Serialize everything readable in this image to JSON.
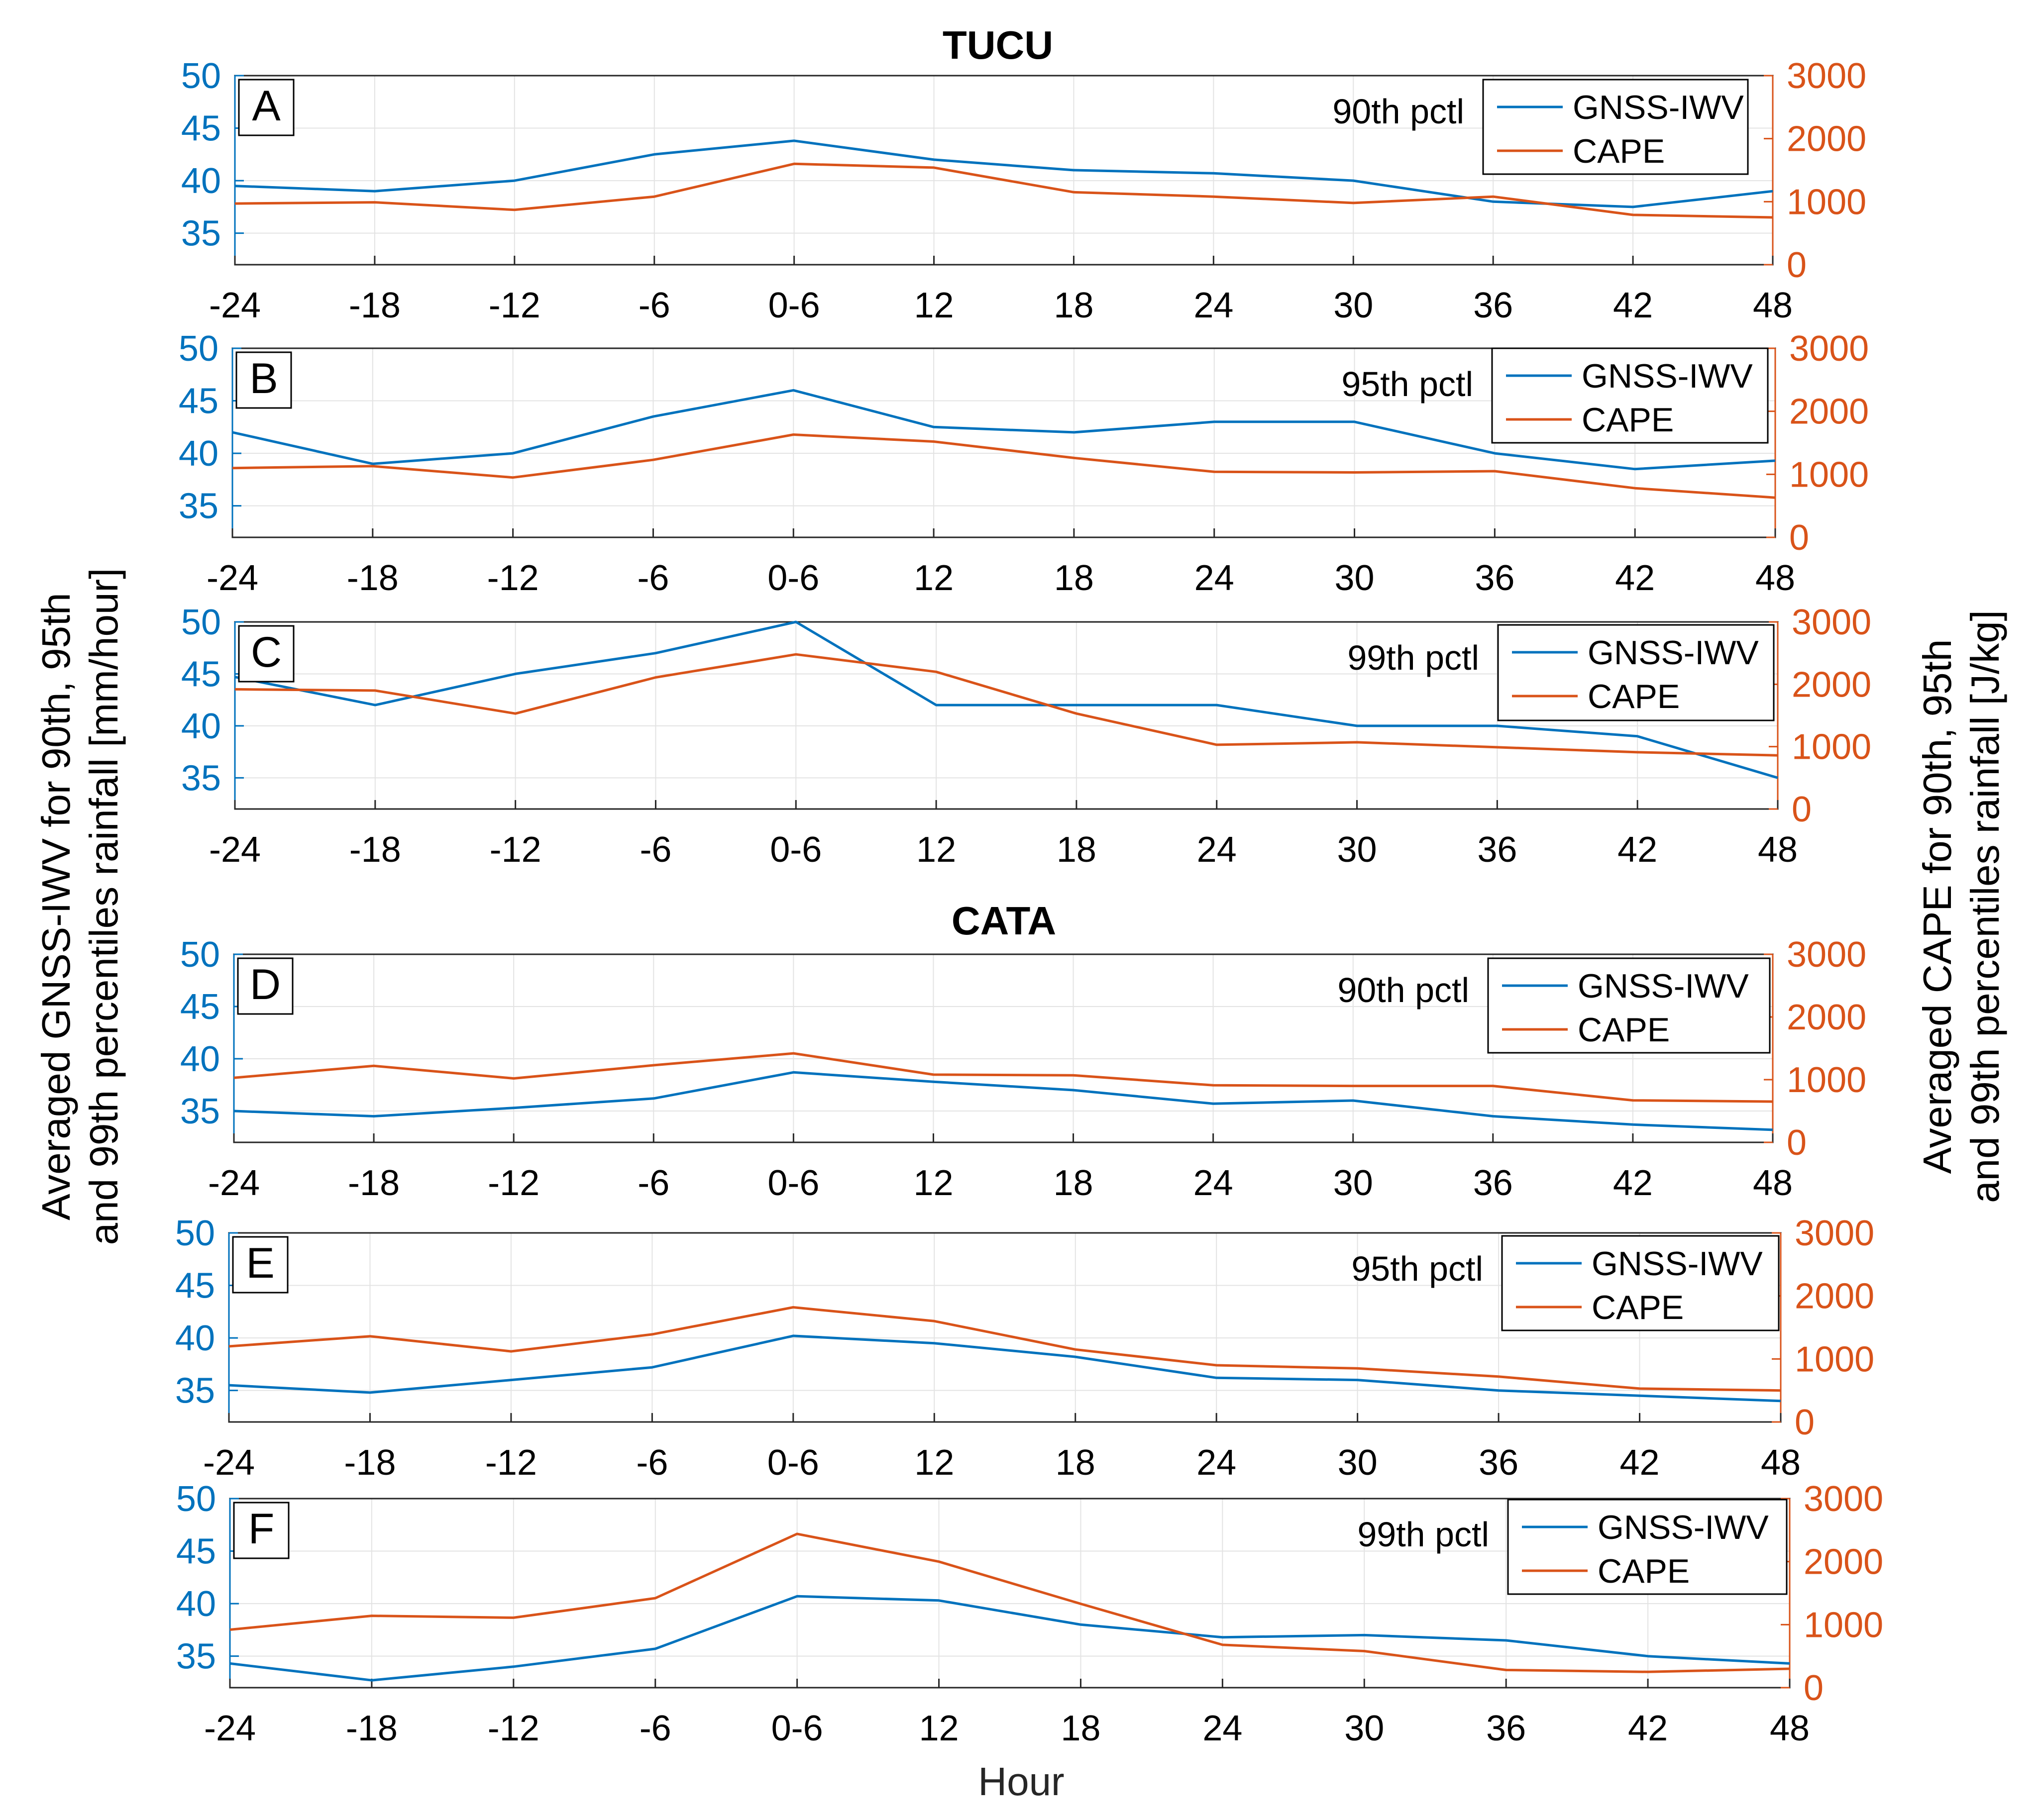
{
  "figure": {
    "y_left_label_line1": "Averaged GNSS-IWV for 90th, 95th",
    "y_left_label_line2": "and 99th percentiles rainfall [mm/hour]",
    "y_right_label_line1": "Averaged CAPE for 90th, 95th",
    "y_right_label_line2": "and 99th percentiles rainfall [J/kg]",
    "x_label": "Hour",
    "station_titles": [
      "TUCU",
      "CATA"
    ],
    "colors": {
      "iwv": "#0072BD",
      "cape": "#D95319",
      "grid": "#e3e3e3",
      "axis": "#262626"
    }
  },
  "chart_data": [
    {
      "type": "line",
      "panel": "A",
      "station": "TUCU",
      "percentile_label": "90th pctl",
      "categories": [
        "-24",
        "-18",
        "-12",
        "-6",
        "0-6",
        "12",
        "18",
        "24",
        "30",
        "36",
        "42",
        "48"
      ],
      "left_ylim": [
        32,
        50
      ],
      "left_ticks": [
        35,
        40,
        45,
        50
      ],
      "right_ylim": [
        0,
        3000
      ],
      "right_ticks": [
        0,
        1000,
        2000,
        3000
      ],
      "series": [
        {
          "name": "GNSS-IWV",
          "axis": "left",
          "values": [
            39.5,
            39.0,
            40.0,
            42.5,
            43.8,
            42.0,
            41.0,
            40.7,
            40.0,
            38.0,
            37.5,
            39.0
          ]
        },
        {
          "name": "CAPE",
          "axis": "right",
          "values": [
            970,
            990,
            870,
            1080,
            1600,
            1540,
            1150,
            1080,
            980,
            1080,
            790,
            750
          ]
        }
      ]
    },
    {
      "type": "line",
      "panel": "B",
      "station": "TUCU",
      "percentile_label": "95th pctl",
      "categories": [
        "-24",
        "-18",
        "-12",
        "-6",
        "0-6",
        "12",
        "18",
        "24",
        "30",
        "36",
        "42",
        "48"
      ],
      "left_ylim": [
        32,
        50
      ],
      "left_ticks": [
        35,
        40,
        45,
        50
      ],
      "right_ylim": [
        0,
        3000
      ],
      "right_ticks": [
        0,
        1000,
        2000,
        3000
      ],
      "series": [
        {
          "name": "GNSS-IWV",
          "axis": "left",
          "values": [
            42.0,
            39.0,
            40.0,
            43.5,
            46.0,
            42.5,
            42.0,
            43.0,
            43.0,
            40.0,
            38.5,
            39.3
          ]
        },
        {
          "name": "CAPE",
          "axis": "right",
          "values": [
            1100,
            1130,
            950,
            1230,
            1630,
            1520,
            1260,
            1040,
            1030,
            1050,
            780,
            630
          ]
        }
      ]
    },
    {
      "type": "line",
      "panel": "C",
      "station": "TUCU",
      "percentile_label": "99th pctl",
      "categories": [
        "-24",
        "-18",
        "-12",
        "-6",
        "0-6",
        "12",
        "18",
        "24",
        "30",
        "36",
        "42",
        "48"
      ],
      "left_ylim": [
        32,
        50
      ],
      "left_ticks": [
        35,
        40,
        45,
        50
      ],
      "right_ylim": [
        0,
        3000
      ],
      "right_ticks": [
        0,
        1000,
        2000,
        3000
      ],
      "series": [
        {
          "name": "GNSS-IWV",
          "axis": "left",
          "values": [
            44.7,
            42.0,
            45.0,
            47.0,
            50.0,
            42.0,
            42.0,
            42.0,
            40.0,
            40.0,
            39.0,
            35.0
          ]
        },
        {
          "name": "CAPE",
          "axis": "right",
          "values": [
            1920,
            1900,
            1530,
            2110,
            2480,
            2200,
            1530,
            1030,
            1070,
            990,
            910,
            860
          ]
        }
      ]
    },
    {
      "type": "line",
      "panel": "D",
      "station": "CATA",
      "percentile_label": "90th pctl",
      "categories": [
        "-24",
        "-18",
        "-12",
        "-6",
        "0-6",
        "12",
        "18",
        "24",
        "30",
        "36",
        "42",
        "48"
      ],
      "left_ylim": [
        32,
        50
      ],
      "left_ticks": [
        35,
        40,
        45,
        50
      ],
      "right_ylim": [
        0,
        3000
      ],
      "right_ticks": [
        0,
        1000,
        2000,
        3000
      ],
      "series": [
        {
          "name": "GNSS-IWV",
          "axis": "left",
          "values": [
            35.0,
            34.5,
            35.3,
            36.2,
            38.7,
            37.8,
            37.0,
            35.7,
            36.0,
            34.5,
            33.7,
            33.2
          ]
        },
        {
          "name": "CAPE",
          "axis": "right",
          "values": [
            1030,
            1220,
            1020,
            1230,
            1420,
            1080,
            1070,
            910,
            900,
            900,
            670,
            650
          ]
        }
      ]
    },
    {
      "type": "line",
      "panel": "E",
      "station": "CATA",
      "percentile_label": "95th pctl",
      "categories": [
        "-24",
        "-18",
        "-12",
        "-6",
        "0-6",
        "12",
        "18",
        "24",
        "30",
        "36",
        "42",
        "48"
      ],
      "left_ylim": [
        32,
        50
      ],
      "left_ticks": [
        35,
        40,
        45,
        50
      ],
      "right_ylim": [
        0,
        3000
      ],
      "right_ticks": [
        0,
        1000,
        2000,
        3000
      ],
      "series": [
        {
          "name": "GNSS-IWV",
          "axis": "left",
          "values": [
            35.5,
            34.8,
            36.0,
            37.2,
            40.2,
            39.5,
            38.2,
            36.2,
            36.0,
            35.0,
            34.5,
            34.0
          ]
        },
        {
          "name": "CAPE",
          "axis": "right",
          "values": [
            1200,
            1360,
            1120,
            1390,
            1820,
            1600,
            1150,
            900,
            850,
            720,
            530,
            500
          ]
        }
      ]
    },
    {
      "type": "line",
      "panel": "F",
      "station": "CATA",
      "percentile_label": "99th pctl",
      "categories": [
        "-24",
        "-18",
        "-12",
        "-6",
        "0-6",
        "12",
        "18",
        "24",
        "30",
        "36",
        "42",
        "48"
      ],
      "left_ylim": [
        32,
        50
      ],
      "left_ticks": [
        35,
        40,
        45,
        50
      ],
      "right_ylim": [
        0,
        3000
      ],
      "right_ticks": [
        0,
        1000,
        2000,
        3000
      ],
      "series": [
        {
          "name": "GNSS-IWV",
          "axis": "left",
          "values": [
            34.3,
            32.7,
            34.0,
            35.7,
            40.7,
            40.3,
            38.0,
            36.8,
            37.0,
            36.5,
            35.0,
            34.3
          ]
        },
        {
          "name": "CAPE",
          "axis": "right",
          "values": [
            920,
            1140,
            1110,
            1420,
            2440,
            2000,
            1330,
            680,
            580,
            280,
            250,
            300
          ]
        }
      ]
    }
  ]
}
